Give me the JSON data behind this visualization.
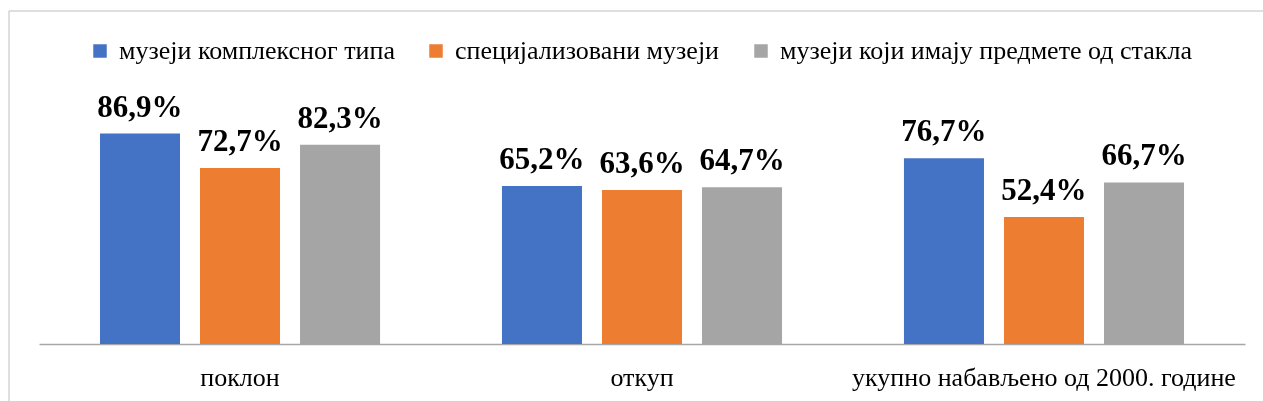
{
  "chart_data": {
    "type": "bar",
    "categories": [
      "поклон",
      "откуп",
      "укупно набављено од 2000. године"
    ],
    "series": [
      {
        "name": "музеји комплексног типа",
        "color": "#4472c4",
        "values": [
          86.9,
          65.2,
          76.7
        ],
        "value_labels": [
          "86,9%",
          "65,2%",
          "76,7%"
        ]
      },
      {
        "name": "специјализовани музеји",
        "color": "#ed7d31",
        "values": [
          72.7,
          63.6,
          52.4
        ],
        "value_labels": [
          "72,7%",
          "63,6%",
          "52,4%"
        ]
      },
      {
        "name": "музеји који имају предмете од стакла",
        "color": "#a5a5a5",
        "values": [
          82.3,
          64.7,
          66.7
        ],
        "value_labels": [
          "82,3%",
          "64,7%",
          "66,7%"
        ]
      }
    ],
    "legend": "top",
    "grid": false
  }
}
